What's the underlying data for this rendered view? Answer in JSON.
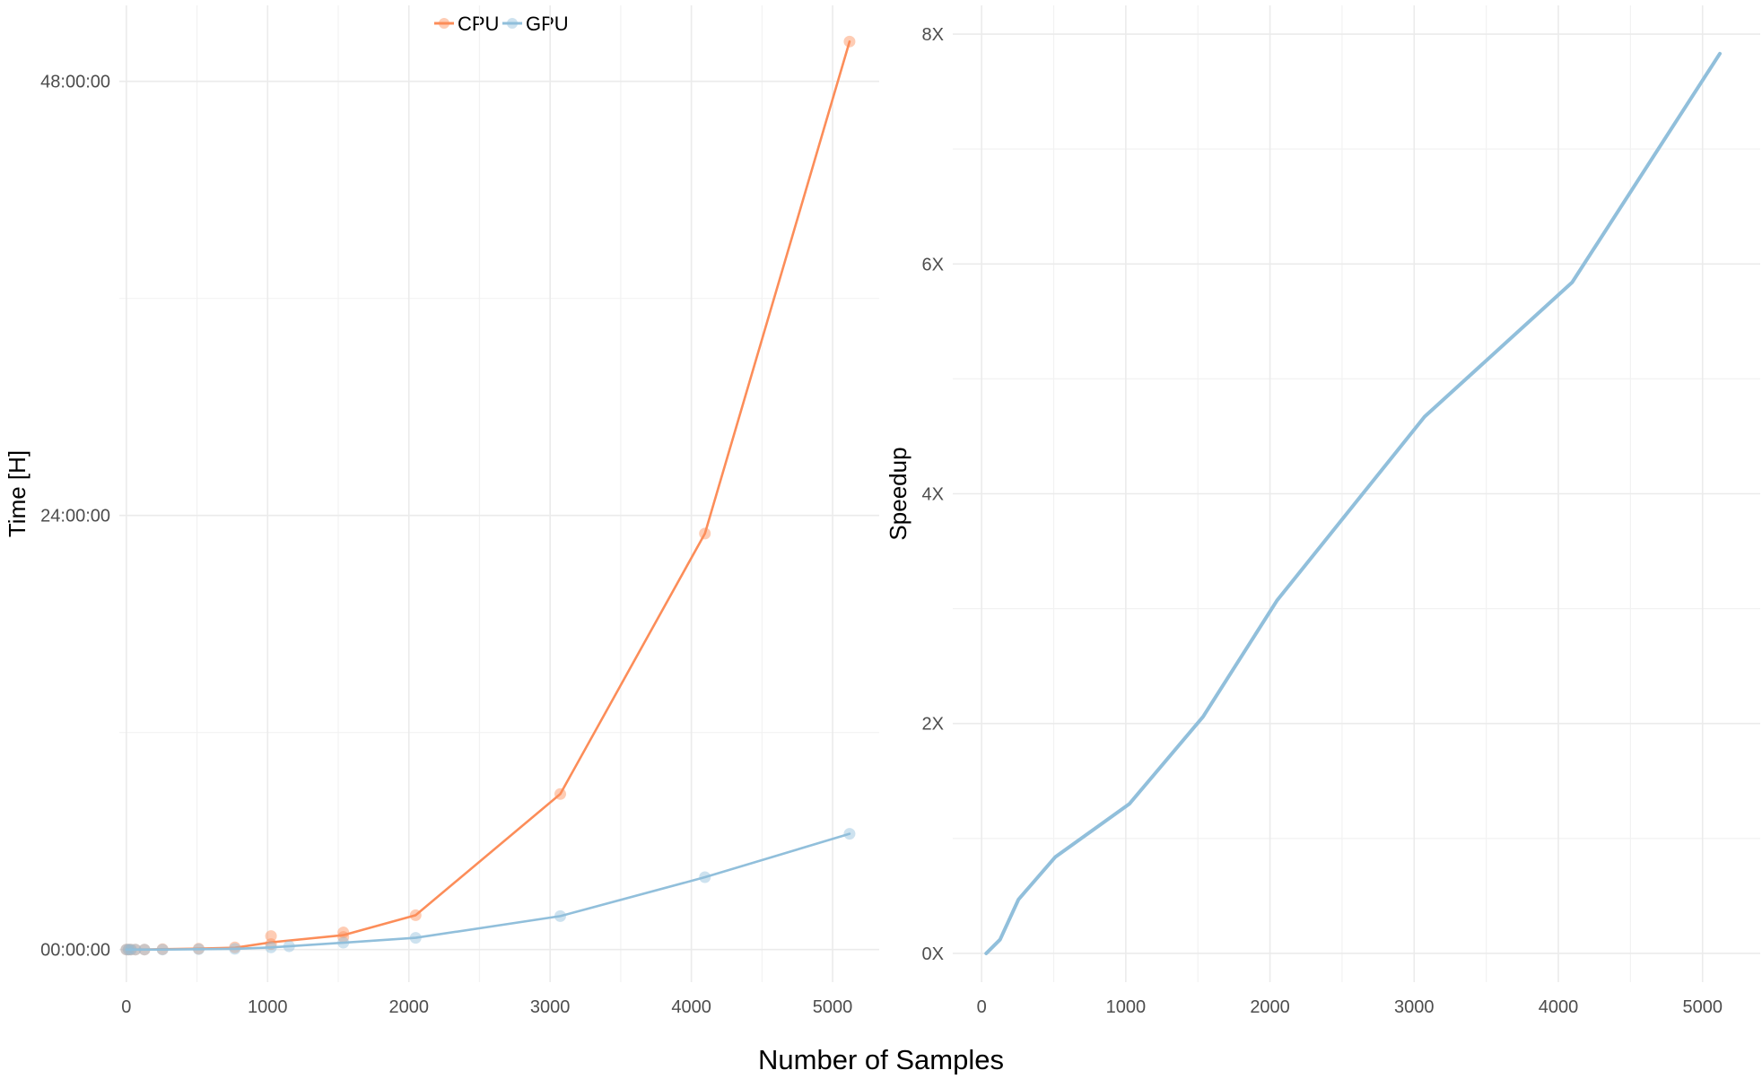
{
  "figure": {
    "shared_xlabel": "Number of Samples"
  },
  "legend": {
    "items": [
      {
        "label": "CPU",
        "color": "#fc8d59"
      },
      {
        "label": "GPU",
        "color": "#91bfdb"
      }
    ]
  },
  "chart_data": [
    {
      "type": "line",
      "ylabel": "Time [H]",
      "xlim": [
        -50,
        5330
      ],
      "ylim": [
        -1.8,
        52.2
      ],
      "xticks": [
        0,
        1000,
        2000,
        3000,
        4000,
        5000
      ],
      "yticks": [
        0,
        24,
        48
      ],
      "ytick_labels": [
        "00:00:00",
        "24:00:00",
        "48:00:00"
      ],
      "grid": true,
      "legend_position": "top",
      "series": [
        {
          "name": "CPU",
          "color": "#fc8d59",
          "x": [
            0,
            16,
            32,
            64,
            128,
            256,
            512,
            768,
            1024,
            1536,
            2048,
            3072,
            4096,
            5120
          ],
          "y": [
            0,
            0,
            0,
            0,
            0,
            0.02,
            0.05,
            0.1,
            0.4,
            0.8,
            1.9,
            8.6,
            23.0,
            50.2
          ],
          "points": [
            [
              0,
              0
            ],
            [
              16,
              0
            ],
            [
              32,
              0
            ],
            [
              64,
              0
            ],
            [
              128,
              0
            ],
            [
              256,
              0.02
            ],
            [
              512,
              0.05
            ],
            [
              768,
              0.12
            ],
            [
              1024,
              0.3
            ],
            [
              1024,
              0.75
            ],
            [
              1536,
              0.7
            ],
            [
              1536,
              0.95
            ],
            [
              2048,
              1.9
            ],
            [
              3072,
              8.6
            ],
            [
              4096,
              23.0
            ],
            [
              5120,
              50.2
            ]
          ]
        },
        {
          "name": "GPU",
          "color": "#91bfdb",
          "x": [
            0,
            16,
            32,
            64,
            128,
            256,
            512,
            768,
            1024,
            1536,
            2048,
            3072,
            4096,
            5120
          ],
          "y": [
            0,
            0,
            0,
            0,
            0,
            0,
            0.02,
            0.04,
            0.12,
            0.38,
            0.65,
            1.85,
            4.0,
            6.4
          ],
          "points": [
            [
              0,
              0
            ],
            [
              16,
              0
            ],
            [
              32,
              0
            ],
            [
              64,
              0
            ],
            [
              128,
              0
            ],
            [
              256,
              0
            ],
            [
              512,
              0.02
            ],
            [
              768,
              0.04
            ],
            [
              1024,
              0.12
            ],
            [
              1152,
              0.18
            ],
            [
              1536,
              0.38
            ],
            [
              2048,
              0.65
            ],
            [
              3072,
              1.85
            ],
            [
              4096,
              4.0
            ],
            [
              5120,
              6.4
            ]
          ]
        }
      ]
    },
    {
      "type": "line",
      "ylabel": "Speedup",
      "xlim": [
        -200,
        5400
      ],
      "ylim": [
        -0.25,
        8.25
      ],
      "xticks": [
        0,
        1000,
        2000,
        3000,
        4000,
        5000
      ],
      "yticks": [
        0,
        2,
        4,
        6,
        8
      ],
      "ytick_labels": [
        "0X",
        "2X",
        "4X",
        "6X",
        "8X"
      ],
      "grid": true,
      "series": [
        {
          "color": "#91bfdb",
          "x": [
            32,
            128,
            256,
            512,
            1024,
            1536,
            2048,
            3072,
            4096,
            5120
          ],
          "y": [
            0.0,
            0.12,
            0.47,
            0.84,
            1.3,
            2.06,
            3.07,
            4.67,
            5.84,
            7.83
          ]
        }
      ]
    }
  ]
}
